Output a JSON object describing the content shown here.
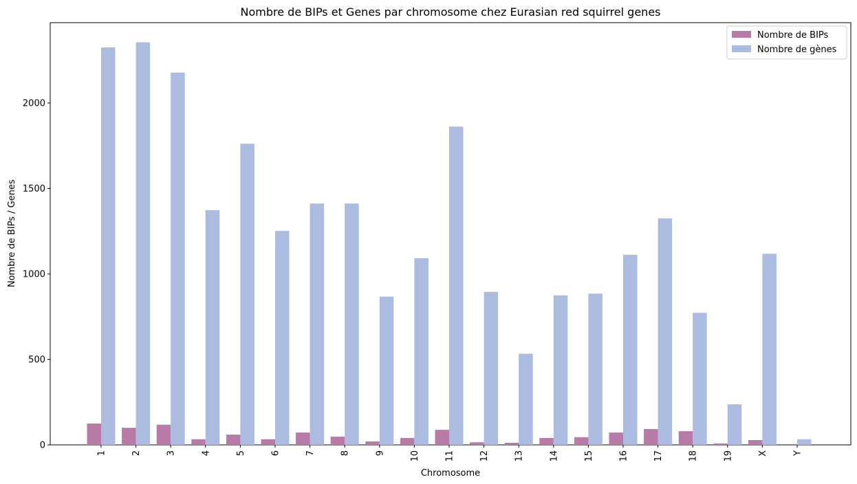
{
  "chart_data": {
    "type": "bar",
    "title": "Nombre de BIPs et Genes par chromosome chez Eurasian red squirrel genes",
    "xlabel": "Chromosome",
    "ylabel": "Nombre de BIPs / Genes",
    "categories": [
      "1",
      "2",
      "3",
      "4",
      "5",
      "6",
      "7",
      "8",
      "9",
      "10",
      "11",
      "12",
      "13",
      "14",
      "15",
      "16",
      "17",
      "18",
      "19",
      "X",
      "Y"
    ],
    "ylim": [
      0,
      2470
    ],
    "yticks": [
      0,
      500,
      1000,
      1500,
      2000
    ],
    "x_tick_rotation": "vertical",
    "grid": false,
    "legend_position": "top-right",
    "series": [
      {
        "name": "Nombre de BIPs",
        "color": "#b87ba8",
        "values": [
          125,
          100,
          118,
          33,
          60,
          33,
          72,
          48,
          20,
          40,
          88,
          15,
          12,
          40,
          45,
          72,
          93,
          80,
          8,
          28,
          0
        ]
      },
      {
        "name": "Nombre de gènes",
        "color": "#abbce0",
        "values": [
          2325,
          2355,
          2178,
          1373,
          1762,
          1252,
          1412,
          1412,
          867,
          1092,
          1862,
          895,
          533,
          875,
          885,
          1112,
          1325,
          773,
          237,
          1118,
          33
        ]
      }
    ]
  }
}
